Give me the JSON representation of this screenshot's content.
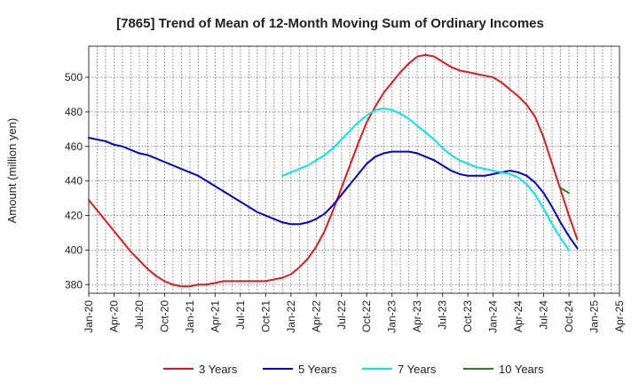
{
  "chart_data": {
    "type": "line",
    "title": "[7865]  Trend of Mean of 12-Month Moving Sum of Ordinary Incomes",
    "xlabel": "",
    "ylabel": "Amount (million yen)",
    "ylim": [
      375,
      518
    ],
    "yticks": [
      380,
      400,
      420,
      440,
      460,
      480,
      500
    ],
    "x_start": "Jan-20",
    "x_ticks": [
      "Jan-20",
      "Apr-20",
      "Jul-20",
      "Oct-20",
      "Jan-21",
      "Apr-21",
      "Jul-21",
      "Oct-21",
      "Jan-22",
      "Apr-22",
      "Jul-22",
      "Oct-22",
      "Jan-23",
      "Apr-23",
      "Jul-23",
      "Oct-23",
      "Jan-24",
      "Apr-24",
      "Jul-24",
      "Oct-24",
      "Jan-25",
      "Apr-25"
    ],
    "grid": true,
    "legend_position": "bottom",
    "series": [
      {
        "name": "3 Years",
        "color": "#e31a1c",
        "start_index": 0,
        "values": [
          429,
          423,
          417,
          411,
          405,
          399,
          394,
          389,
          385,
          382,
          380,
          379,
          379,
          380,
          380,
          381,
          382,
          382,
          382,
          382,
          382,
          382,
          383,
          384,
          386,
          390,
          395,
          402,
          411,
          423,
          436,
          449,
          462,
          474,
          483,
          491,
          497,
          503,
          508,
          512,
          513,
          512,
          509,
          506,
          504,
          503,
          502,
          501,
          500,
          497,
          493,
          489,
          484,
          477,
          465,
          450,
          435,
          420,
          406
        ]
      },
      {
        "name": "5 Years",
        "color": "#0000cc",
        "start_index": 0,
        "values": [
          465,
          464,
          463,
          461,
          460,
          458,
          456,
          455,
          453,
          451,
          449,
          447,
          445,
          443,
          440,
          437,
          434,
          431,
          428,
          425,
          422,
          420,
          418,
          416,
          415,
          415,
          416,
          418,
          421,
          426,
          432,
          438,
          444,
          450,
          454,
          456,
          457,
          457,
          457,
          456,
          454,
          452,
          449,
          446,
          444,
          443,
          443,
          443,
          444,
          445,
          446,
          445,
          443,
          439,
          433,
          425,
          416,
          408,
          401
        ]
      },
      {
        "name": "7 Years",
        "color": "#00e5ee",
        "start_index": 23,
        "values": [
          443,
          445,
          447,
          449,
          452,
          455,
          459,
          464,
          469,
          474,
          478,
          481,
          482,
          481,
          479,
          476,
          472,
          468,
          464,
          459,
          455,
          452,
          450,
          448,
          447,
          446,
          445,
          444,
          442,
          438,
          432,
          424,
          415,
          407,
          400
        ]
      },
      {
        "name": "10 Years",
        "color": "#1a8a1a",
        "start_index": 56,
        "values": [
          436,
          433
        ]
      }
    ]
  }
}
